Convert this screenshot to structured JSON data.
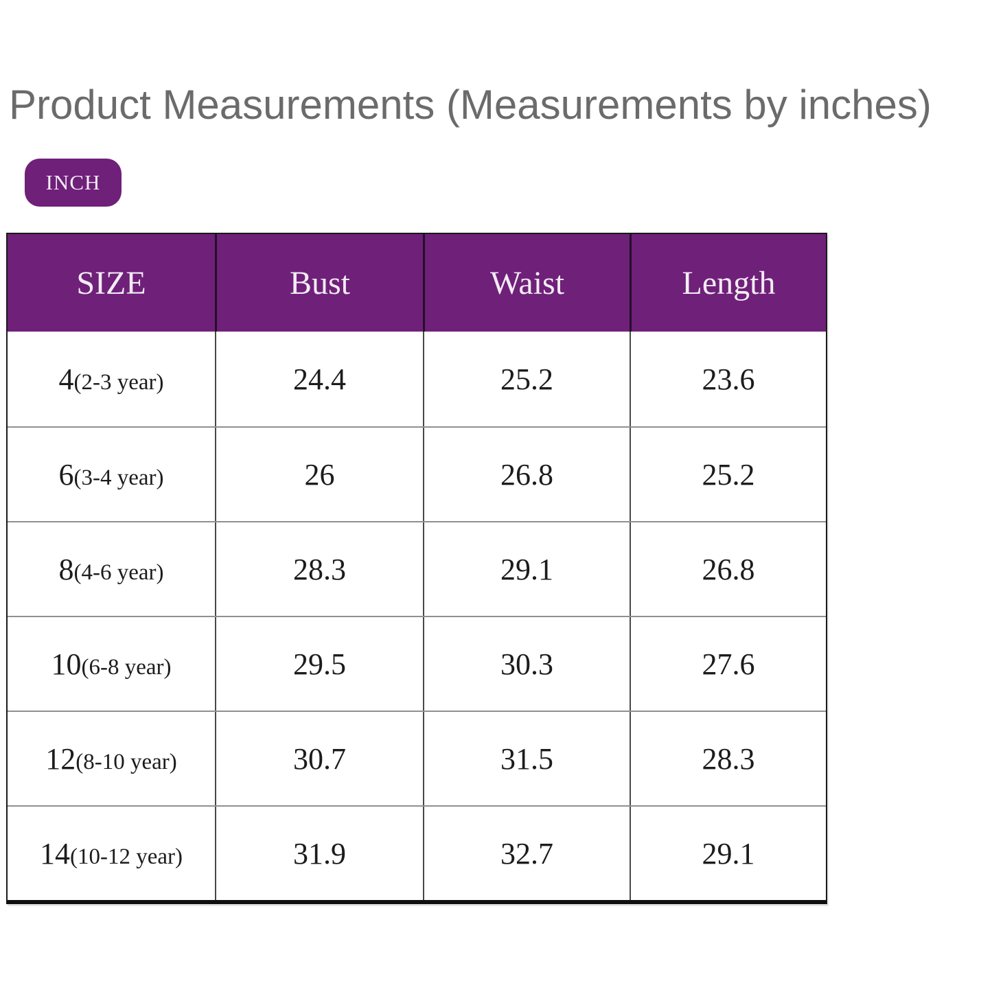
{
  "page": {
    "title": "Product Measurements (Measurements by inches)",
    "unit_badge": "INCH"
  },
  "colors": {
    "accent_purple": "#6f2079",
    "title_gray": "#6b6b6b",
    "table_text": "#1c1c1c",
    "header_text": "#f3ecf5"
  },
  "chart_data": {
    "type": "table",
    "title": "Product Measurements (Measurements by inches)",
    "unit": "INCH",
    "columns": [
      "SIZE",
      "Bust",
      "Waist",
      "Length"
    ],
    "rows": [
      {
        "size": "4",
        "age": "(2-3 year)",
        "bust": "24.4",
        "waist": "25.2",
        "length": "23.6"
      },
      {
        "size": "6",
        "age": "(3-4 year)",
        "bust": "26",
        "waist": "26.8",
        "length": "25.2"
      },
      {
        "size": "8",
        "age": "(4-6 year)",
        "bust": "28.3",
        "waist": "29.1",
        "length": "26.8"
      },
      {
        "size": "10",
        "age": "(6-8 year)",
        "bust": "29.5",
        "waist": "30.3",
        "length": "27.6"
      },
      {
        "size": "12",
        "age": "(8-10 year)",
        "bust": "30.7",
        "waist": "31.5",
        "length": "28.3"
      },
      {
        "size": "14",
        "age": "(10-12 year)",
        "bust": "31.9",
        "waist": "32.7",
        "length": "29.1"
      }
    ]
  }
}
